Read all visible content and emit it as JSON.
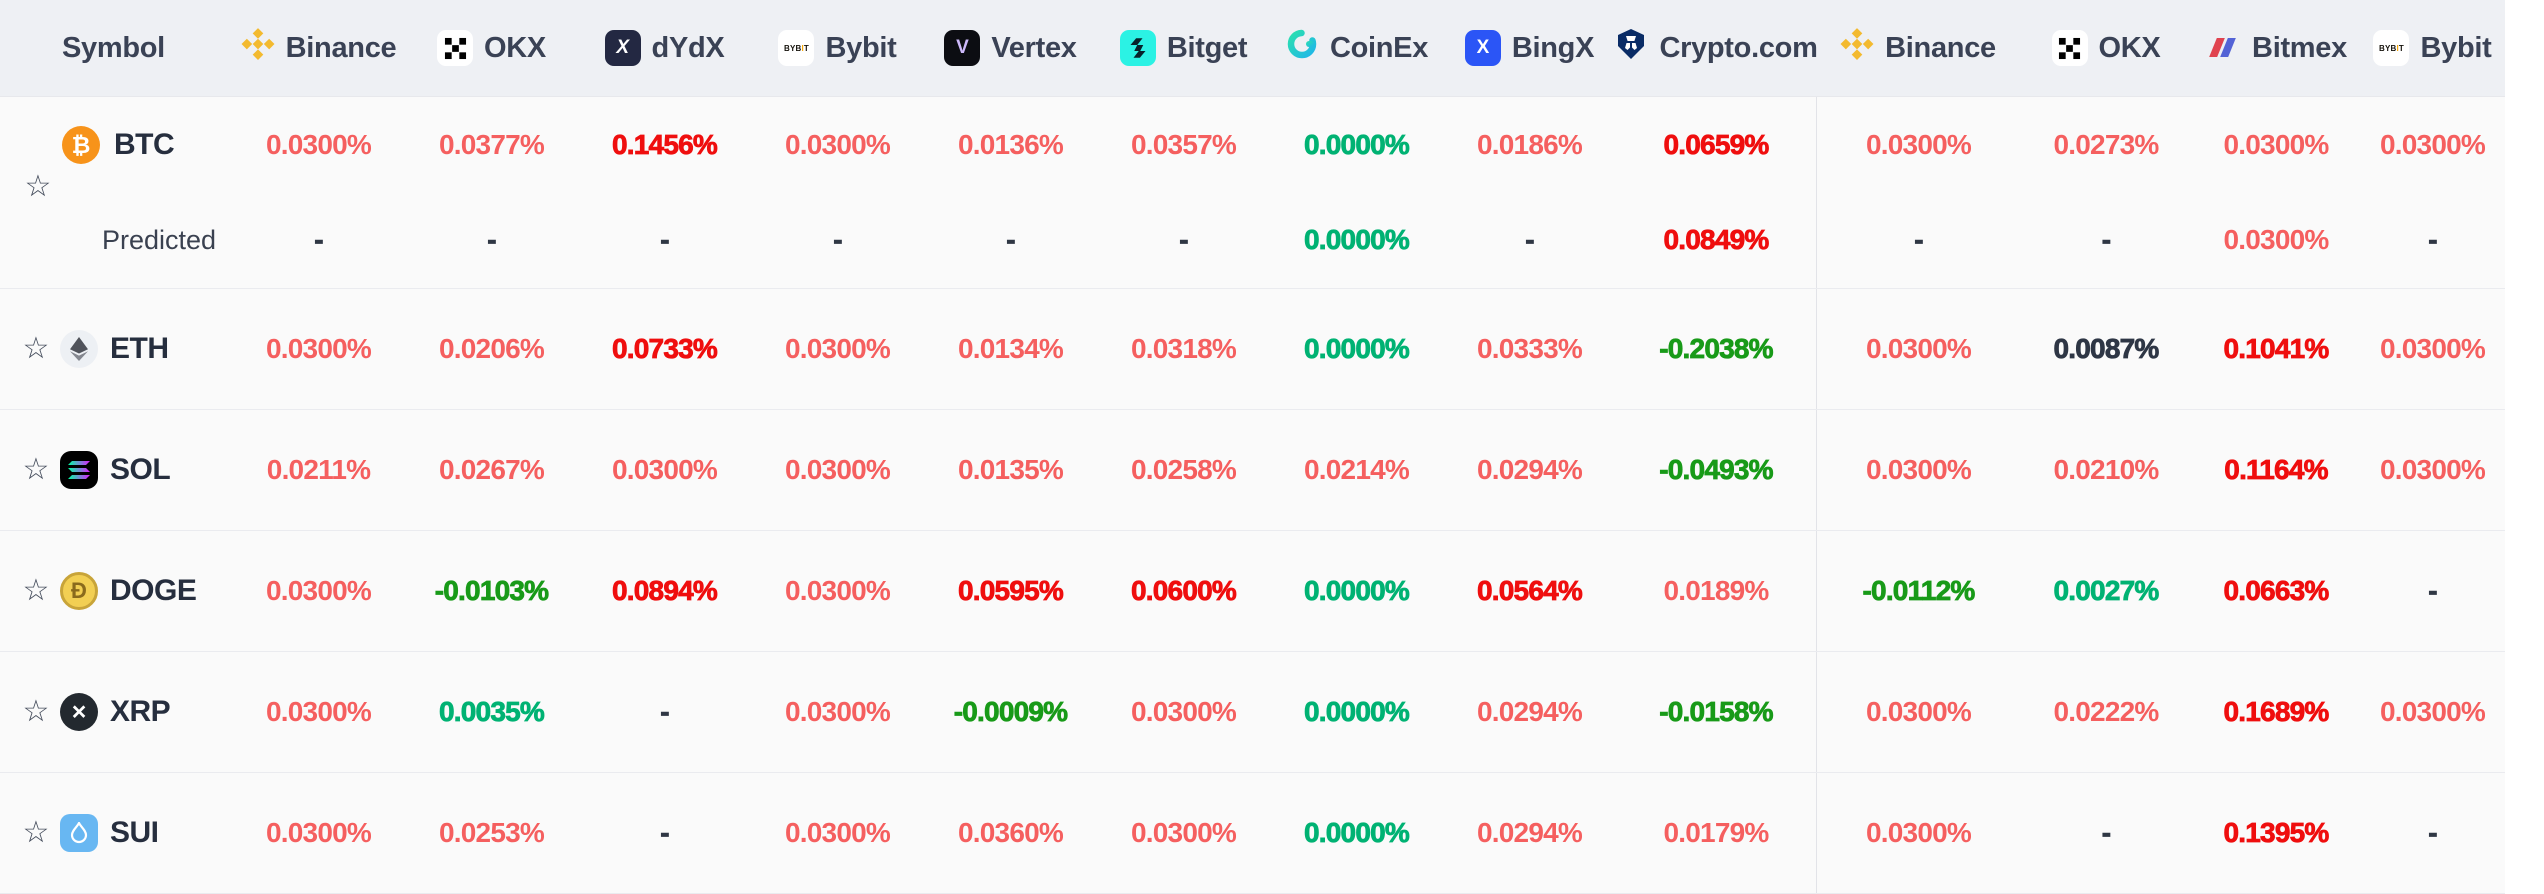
{
  "header": {
    "symbol_label": "Symbol",
    "exchanges": [
      {
        "label": "Binance",
        "icon": "binance-icon"
      },
      {
        "label": "OKX",
        "icon": "okx-icon"
      },
      {
        "label": "dYdX",
        "icon": "dydx-icon"
      },
      {
        "label": "Bybit",
        "icon": "bybit-icon"
      },
      {
        "label": "Vertex",
        "icon": "vertex-icon"
      },
      {
        "label": "Bitget",
        "icon": "bitget-icon"
      },
      {
        "label": "CoinEx",
        "icon": "coinex-icon"
      },
      {
        "label": "BingX",
        "icon": "bingx-icon"
      },
      {
        "label": "Crypto.com",
        "icon": "cryptocom-icon"
      },
      {
        "label": "Binance",
        "icon": "binance-icon"
      },
      {
        "label": "OKX",
        "icon": "okx-icon"
      },
      {
        "label": "Bitmex",
        "icon": "bitmex-icon"
      },
      {
        "label": "Bybit",
        "icon": "bybit-icon"
      }
    ]
  },
  "predicted_label": "Predicted",
  "colors": {
    "header_bg": "#EEF0F4",
    "row_bg": "#FAFAFA",
    "rate_red": "#F55F5F",
    "rate_red_strong": "#EF0E0E",
    "rate_green": "#00B273",
    "rate_green_dark": "#189A18",
    "rate_neutral_dark": "#2E3645"
  },
  "rows": [
    {
      "symbol": "BTC",
      "icon": "btc-icon",
      "cells": [
        {
          "v": "0.0300%",
          "tone": "red"
        },
        {
          "v": "0.0377%",
          "tone": "red"
        },
        {
          "v": "0.1456%",
          "tone": "redStrong"
        },
        {
          "v": "0.0300%",
          "tone": "red"
        },
        {
          "v": "0.0136%",
          "tone": "red"
        },
        {
          "v": "0.0357%",
          "tone": "red"
        },
        {
          "v": "0.0000%",
          "tone": "green"
        },
        {
          "v": "0.0186%",
          "tone": "red"
        },
        {
          "v": "0.0659%",
          "tone": "redStrong"
        },
        {
          "v": "0.0300%",
          "tone": "red"
        },
        {
          "v": "0.0273%",
          "tone": "red"
        },
        {
          "v": "0.0300%",
          "tone": "red"
        },
        {
          "v": "0.0300%",
          "tone": "red"
        }
      ],
      "predicted": [
        {
          "v": "-",
          "tone": "dash"
        },
        {
          "v": "-",
          "tone": "dash"
        },
        {
          "v": "-",
          "tone": "dash"
        },
        {
          "v": "-",
          "tone": "dash"
        },
        {
          "v": "-",
          "tone": "dash"
        },
        {
          "v": "-",
          "tone": "dash"
        },
        {
          "v": "0.0000%",
          "tone": "green"
        },
        {
          "v": "-",
          "tone": "dash"
        },
        {
          "v": "0.0849%",
          "tone": "redStrong"
        },
        {
          "v": "-",
          "tone": "dash"
        },
        {
          "v": "-",
          "tone": "dash"
        },
        {
          "v": "0.0300%",
          "tone": "red"
        },
        {
          "v": "-",
          "tone": "dash"
        }
      ]
    },
    {
      "symbol": "ETH",
      "icon": "eth-icon",
      "cells": [
        {
          "v": "0.0300%",
          "tone": "red"
        },
        {
          "v": "0.0206%",
          "tone": "red"
        },
        {
          "v": "0.0733%",
          "tone": "redStrong"
        },
        {
          "v": "0.0300%",
          "tone": "red"
        },
        {
          "v": "0.0134%",
          "tone": "red"
        },
        {
          "v": "0.0318%",
          "tone": "red"
        },
        {
          "v": "0.0000%",
          "tone": "green"
        },
        {
          "v": "0.0333%",
          "tone": "red"
        },
        {
          "v": "-0.2038%",
          "tone": "greenDark"
        },
        {
          "v": "0.0300%",
          "tone": "red"
        },
        {
          "v": "0.0087%",
          "tone": "dark"
        },
        {
          "v": "0.1041%",
          "tone": "redStrong"
        },
        {
          "v": "0.0300%",
          "tone": "red"
        }
      ]
    },
    {
      "symbol": "SOL",
      "icon": "sol-icon",
      "cells": [
        {
          "v": "0.0211%",
          "tone": "red"
        },
        {
          "v": "0.0267%",
          "tone": "red"
        },
        {
          "v": "0.0300%",
          "tone": "red"
        },
        {
          "v": "0.0300%",
          "tone": "red"
        },
        {
          "v": "0.0135%",
          "tone": "red"
        },
        {
          "v": "0.0258%",
          "tone": "red"
        },
        {
          "v": "0.0214%",
          "tone": "red"
        },
        {
          "v": "0.0294%",
          "tone": "red"
        },
        {
          "v": "-0.0493%",
          "tone": "greenDark"
        },
        {
          "v": "0.0300%",
          "tone": "red"
        },
        {
          "v": "0.0210%",
          "tone": "red"
        },
        {
          "v": "0.1164%",
          "tone": "redStrong"
        },
        {
          "v": "0.0300%",
          "tone": "red"
        }
      ]
    },
    {
      "symbol": "DOGE",
      "icon": "doge-icon",
      "cells": [
        {
          "v": "0.0300%",
          "tone": "red"
        },
        {
          "v": "-0.0103%",
          "tone": "greenDark"
        },
        {
          "v": "0.0894%",
          "tone": "redStrong"
        },
        {
          "v": "0.0300%",
          "tone": "red"
        },
        {
          "v": "0.0595%",
          "tone": "redStrong"
        },
        {
          "v": "0.0600%",
          "tone": "redStrong"
        },
        {
          "v": "0.0000%",
          "tone": "green"
        },
        {
          "v": "0.0564%",
          "tone": "redStrong"
        },
        {
          "v": "0.0189%",
          "tone": "red"
        },
        {
          "v": "-0.0112%",
          "tone": "greenDark"
        },
        {
          "v": "0.0027%",
          "tone": "green"
        },
        {
          "v": "0.0663%",
          "tone": "redStrong"
        },
        {
          "v": "-",
          "tone": "dash"
        }
      ]
    },
    {
      "symbol": "XRP",
      "icon": "xrp-icon",
      "cells": [
        {
          "v": "0.0300%",
          "tone": "red"
        },
        {
          "v": "0.0035%",
          "tone": "green"
        },
        {
          "v": "-",
          "tone": "dash"
        },
        {
          "v": "0.0300%",
          "tone": "red"
        },
        {
          "v": "-0.0009%",
          "tone": "greenDark"
        },
        {
          "v": "0.0300%",
          "tone": "red"
        },
        {
          "v": "0.0000%",
          "tone": "green"
        },
        {
          "v": "0.0294%",
          "tone": "red"
        },
        {
          "v": "-0.0158%",
          "tone": "greenDark"
        },
        {
          "v": "0.0300%",
          "tone": "red"
        },
        {
          "v": "0.0222%",
          "tone": "red"
        },
        {
          "v": "0.1689%",
          "tone": "redStrong"
        },
        {
          "v": "0.0300%",
          "tone": "red"
        }
      ]
    },
    {
      "symbol": "SUI",
      "icon": "sui-icon",
      "cells": [
        {
          "v": "0.0300%",
          "tone": "red"
        },
        {
          "v": "0.0253%",
          "tone": "red"
        },
        {
          "v": "-",
          "tone": "dash"
        },
        {
          "v": "0.0300%",
          "tone": "red"
        },
        {
          "v": "0.0360%",
          "tone": "red"
        },
        {
          "v": "0.0300%",
          "tone": "red"
        },
        {
          "v": "0.0000%",
          "tone": "green"
        },
        {
          "v": "0.0294%",
          "tone": "red"
        },
        {
          "v": "0.0179%",
          "tone": "red"
        },
        {
          "v": "0.0300%",
          "tone": "red"
        },
        {
          "v": "-",
          "tone": "dash"
        },
        {
          "v": "0.1395%",
          "tone": "redStrong"
        },
        {
          "v": "-",
          "tone": "dash"
        }
      ]
    }
  ]
}
